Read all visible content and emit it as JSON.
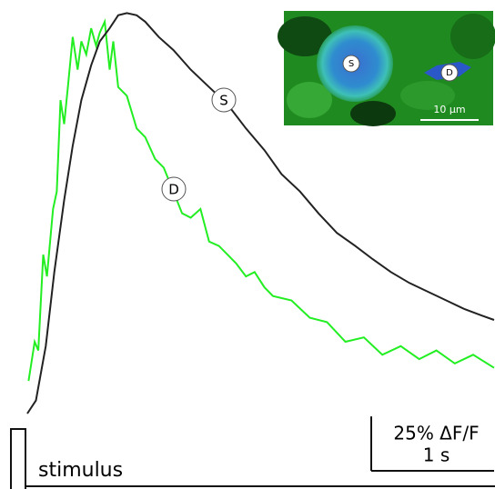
{
  "chart_data": {
    "type": "line",
    "xlim": [
      0,
      3.8
    ],
    "ylim": [
      0,
      190
    ],
    "series": [
      {
        "name": "S",
        "color": "#222222",
        "x": [
          0,
          0.07,
          0.15,
          0.22,
          0.3,
          0.37,
          0.44,
          0.52,
          0.59,
          0.67,
          0.74,
          0.81,
          0.89,
          0.96,
          1.07,
          1.19,
          1.33,
          1.48,
          1.63,
          1.78,
          1.93,
          2.07,
          2.22,
          2.37,
          2.52,
          2.67,
          2.81,
          2.96,
          3.11,
          3.26,
          3.41,
          3.56,
          3.7,
          3.8
        ],
        "values": [
          0,
          6,
          31,
          65,
          98,
          123,
          144,
          160,
          171,
          177,
          183,
          184,
          183,
          180,
          173,
          167,
          158,
          150,
          142,
          131,
          121,
          110,
          102,
          92,
          83,
          77,
          71,
          65,
          60,
          56,
          52,
          48,
          45,
          43
        ]
      },
      {
        "name": "D",
        "color": "#22ee22",
        "x": [
          0.01,
          0.06,
          0.09,
          0.13,
          0.16,
          0.21,
          0.24,
          0.27,
          0.3,
          0.33,
          0.37,
          0.41,
          0.44,
          0.48,
          0.52,
          0.56,
          0.59,
          0.63,
          0.67,
          0.7,
          0.74,
          0.81,
          0.89,
          0.96,
          1.04,
          1.11,
          1.19,
          1.26,
          1.33,
          1.41,
          1.48,
          1.56,
          1.63,
          1.7,
          1.78,
          1.85,
          1.93,
          2.0,
          2.15,
          2.3,
          2.44,
          2.59,
          2.74,
          2.89,
          3.04,
          3.19,
          3.33,
          3.48,
          3.63,
          3.8
        ],
        "values": [
          15,
          33,
          29,
          73,
          63,
          94,
          102,
          144,
          133,
          150,
          173,
          158,
          171,
          165,
          177,
          169,
          175,
          180,
          158,
          171,
          150,
          146,
          131,
          127,
          117,
          113,
          102,
          92,
          90,
          94,
          79,
          77,
          73,
          69,
          63,
          65,
          58,
          54,
          52,
          44,
          42,
          33,
          35,
          27,
          31,
          25,
          29,
          23,
          27,
          21
        ]
      }
    ],
    "scale_bar": {
      "y_value": 25,
      "y_label": "25% ΔF/F",
      "x_value": 1,
      "x_label": "1 s"
    },
    "stimulus_label": "stimulus"
  },
  "inset": {
    "scale_label": "10 µm"
  }
}
